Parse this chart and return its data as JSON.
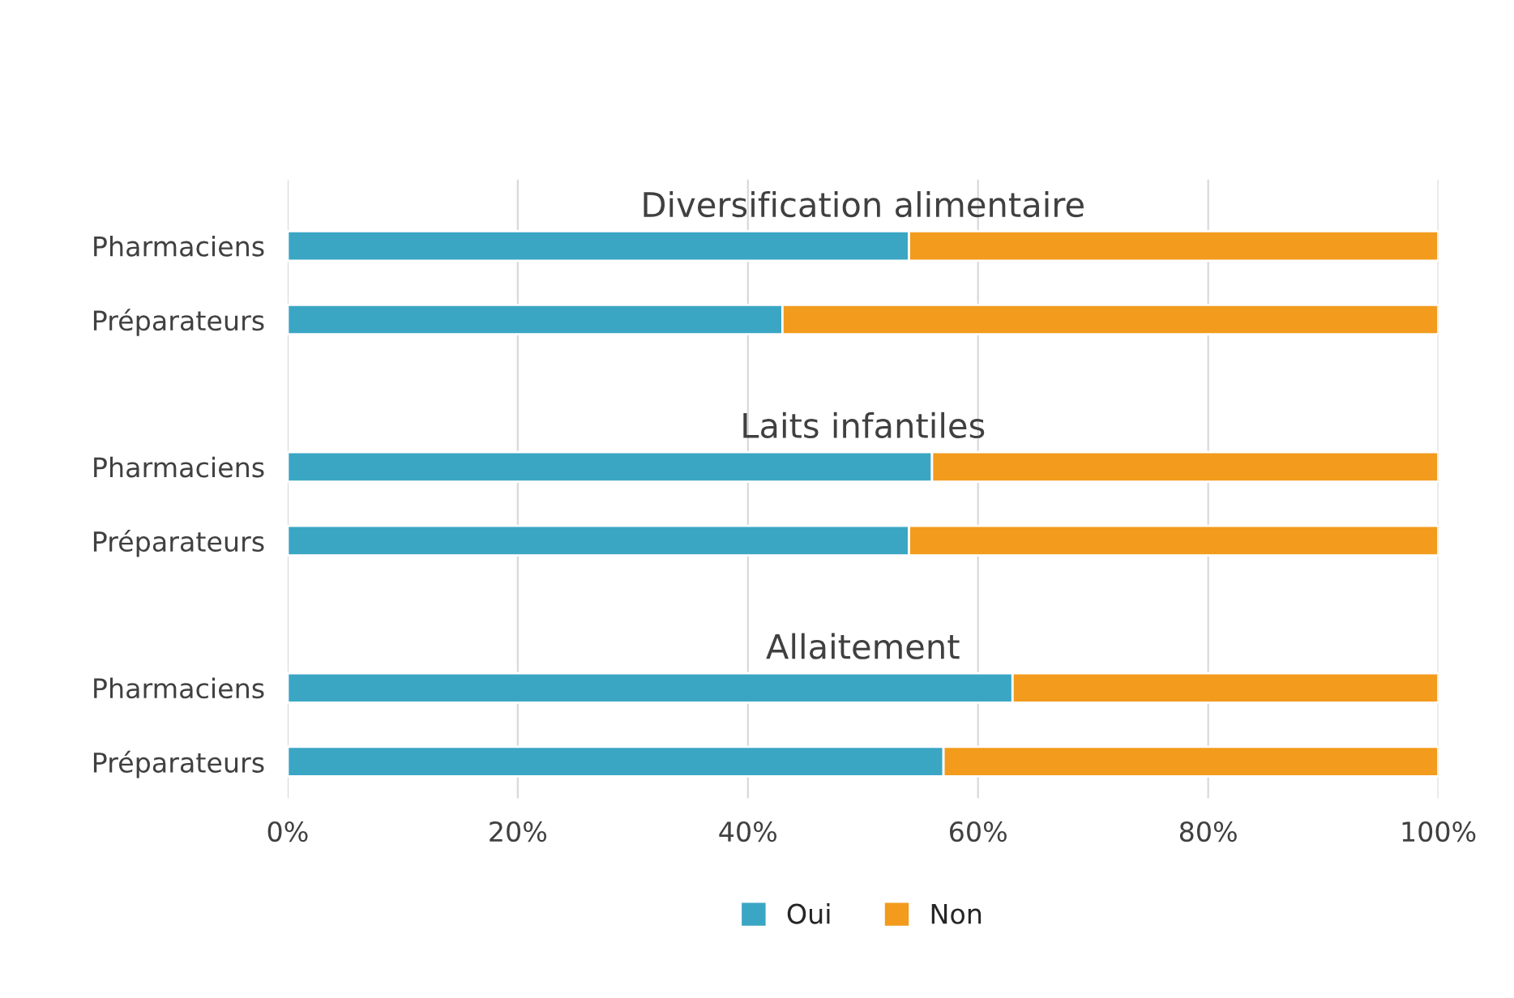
{
  "chart_data": {
    "type": "bar",
    "orientation": "horizontal",
    "stacked": true,
    "categories": [
      "Pharmaciens",
      "Préparateurs",
      null,
      "Pharmaciens",
      "Préparateurs",
      null,
      "Pharmaciens",
      "Préparateurs"
    ],
    "series": [
      {
        "name": "Oui",
        "color": "#3aa6c4",
        "values": [
          54,
          43,
          null,
          56,
          54,
          null,
          63,
          57
        ]
      },
      {
        "name": "Non",
        "color": "#f29b1d",
        "values": [
          46,
          57,
          null,
          44,
          46,
          null,
          37,
          43
        ]
      }
    ],
    "annotations": [
      "Diversification alimentaire",
      "Laits infantiles",
      "Allaitement"
    ],
    "xlim": [
      0,
      100
    ],
    "xticks": [
      {
        "value": 0,
        "label": "0%"
      },
      {
        "value": 20,
        "label": "20%"
      },
      {
        "value": 40,
        "label": "40%"
      },
      {
        "value": 60,
        "label": "60%"
      },
      {
        "value": 80,
        "label": "80%"
      },
      {
        "value": 100,
        "label": "100%"
      }
    ],
    "grid": "x",
    "legend": "bottom"
  }
}
